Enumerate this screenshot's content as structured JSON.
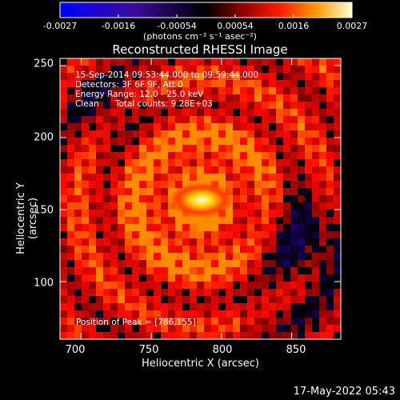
{
  "colorbar": {
    "ticks": [
      "-0.0027",
      "-0.0016",
      "-0.00054",
      "0.00054",
      "0.0016",
      "0.0027"
    ],
    "units": "(photons cm⁻² s⁻¹ asec⁻²)"
  },
  "chart_data": {
    "type": "heatmap",
    "title": "Reconstructed RHESSI Image",
    "xlabel": "Heliocentric X (arcsec)",
    "ylabel": "Heliocentric Y (arcsec)",
    "xlim": [
      685,
      885
    ],
    "ylim": [
      60,
      255
    ],
    "xticks": [
      "700",
      "750",
      "800",
      "850"
    ],
    "yticks": [
      "100",
      "150",
      "200",
      "250"
    ],
    "peak": [
      786,
      155
    ],
    "colorscale": {
      "min": -0.0027,
      "max": 0.0027
    },
    "colors": {
      "low": "#0000ff",
      "mid": "#000000",
      "high1": "#ff0000",
      "high2": "#ffff00",
      "max": "#ffffff"
    }
  },
  "info_lines": [
    "15-Sep-2014 09:53:44.000 to 09:59:44.000",
    "Detectors: 3F 6F 9F, Att 0",
    "Energy Range: 12.0 - 25.0 keV",
    "Clean      Total counts: 9.28E+03"
  ],
  "peak_label": "Position of Peak = [786,155]",
  "timestamp": "17-May-2022 05:43"
}
